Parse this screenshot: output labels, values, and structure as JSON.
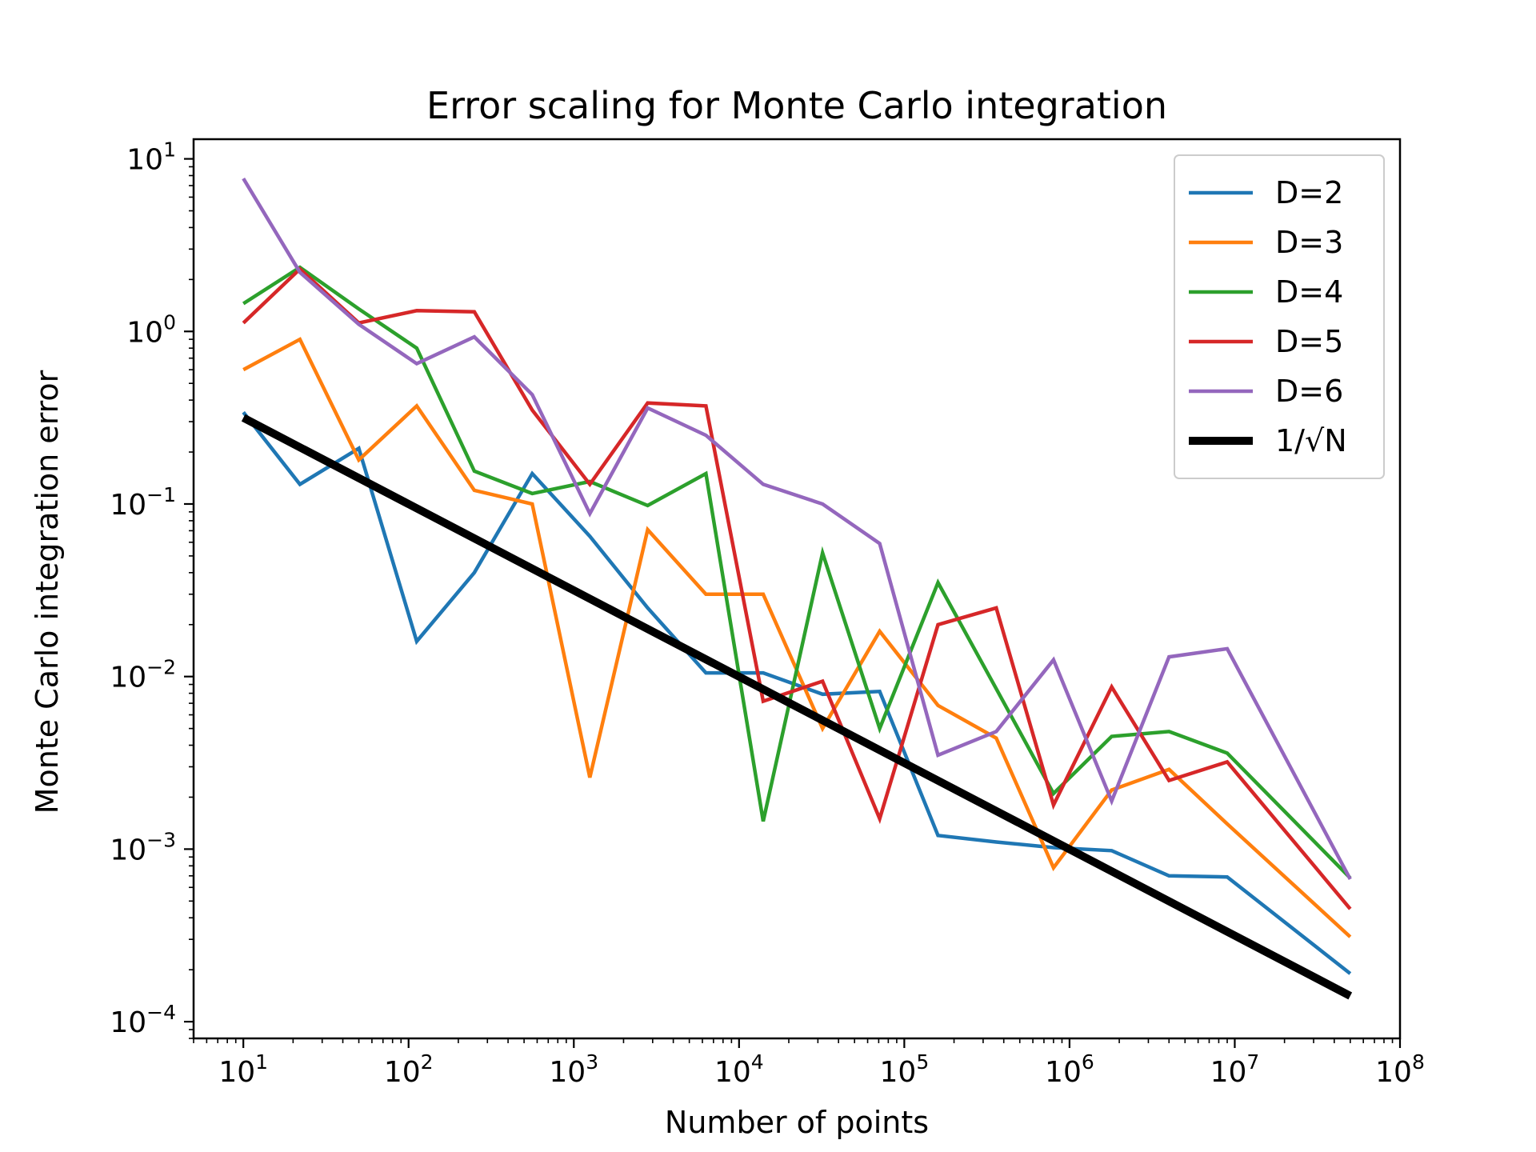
{
  "chart_data": {
    "type": "line",
    "title": "Error scaling for Monte Carlo integration",
    "xlabel": "Number of points",
    "ylabel": "Monte Carlo integration error",
    "xscale": "log",
    "yscale": "log",
    "xlim": [
      5,
      100000000
    ],
    "ylim": [
      8e-05,
      13
    ],
    "grid": false,
    "legend_position": "upper right",
    "x_ticks": [
      {
        "base": "10",
        "exp": "1",
        "value": 10
      },
      {
        "base": "10",
        "exp": "2",
        "value": 100
      },
      {
        "base": "10",
        "exp": "3",
        "value": 1000
      },
      {
        "base": "10",
        "exp": "4",
        "value": 10000
      },
      {
        "base": "10",
        "exp": "5",
        "value": 100000
      },
      {
        "base": "10",
        "exp": "6",
        "value": 1000000
      },
      {
        "base": "10",
        "exp": "7",
        "value": 10000000
      },
      {
        "base": "10",
        "exp": "8",
        "value": 100000000
      }
    ],
    "y_ticks": [
      {
        "base": "10",
        "exp": "−4",
        "value": 0.0001
      },
      {
        "base": "10",
        "exp": "−3",
        "value": 0.001
      },
      {
        "base": "10",
        "exp": "−2",
        "value": 0.01
      },
      {
        "base": "10",
        "exp": "−1",
        "value": 0.1
      },
      {
        "base": "10",
        "exp": "0",
        "value": 1
      },
      {
        "base": "10",
        "exp": "1",
        "value": 10
      }
    ],
    "x": [
      10,
      22,
      50,
      112,
      250,
      560,
      1250,
      2800,
      6300,
      14000,
      32000,
      71000,
      160000,
      360000,
      800000,
      1800000,
      4000000,
      9000000,
      50000000
    ],
    "series": [
      {
        "name": "D=2",
        "color": "#1f77b4",
        "width": 4.5,
        "values": [
          0.34,
          0.13,
          0.21,
          0.016,
          0.04,
          0.15,
          0.065,
          0.025,
          0.0105,
          0.0105,
          0.0079,
          0.0082,
          0.0012,
          0.0011,
          0.00102,
          0.00098,
          0.0007,
          0.00069,
          0.00019
        ]
      },
      {
        "name": "D=3",
        "color": "#ff7f0e",
        "width": 4.5,
        "values": [
          0.6,
          0.9,
          0.18,
          0.37,
          0.12,
          0.1,
          0.0026,
          0.071,
          0.03,
          0.03,
          0.005,
          0.0183,
          0.0068,
          0.0044,
          0.00078,
          0.0022,
          0.0029,
          0.0014,
          0.00031
        ]
      },
      {
        "name": "D=4",
        "color": "#2ca02c",
        "width": 4.5,
        "values": [
          1.45,
          2.35,
          1.35,
          0.8,
          0.155,
          0.115,
          0.135,
          0.098,
          0.15,
          0.00145,
          0.052,
          0.005,
          0.035,
          0.0085,
          0.0021,
          0.0045,
          0.0048,
          0.0036,
          0.00068
        ]
      },
      {
        "name": "D=5",
        "color": "#d62728",
        "width": 4.5,
        "values": [
          1.12,
          2.3,
          1.12,
          1.32,
          1.3,
          0.35,
          0.13,
          0.385,
          0.37,
          0.0072,
          0.0094,
          0.0015,
          0.02,
          0.025,
          0.0018,
          0.0087,
          0.0025,
          0.0032,
          0.00045
        ]
      },
      {
        "name": "D=6",
        "color": "#9467bd",
        "width": 4.5,
        "values": [
          7.7,
          2.2,
          1.1,
          0.65,
          0.93,
          0.43,
          0.088,
          0.36,
          0.25,
          0.13,
          0.1,
          0.059,
          0.0035,
          0.0048,
          0.0125,
          0.0019,
          0.013,
          0.0145,
          0.00067
        ]
      },
      {
        "name": "1/√N",
        "color": "#000000",
        "width": 10,
        "x": [
          10,
          50000000
        ],
        "values": [
          0.316,
          0.000141
        ]
      }
    ]
  }
}
